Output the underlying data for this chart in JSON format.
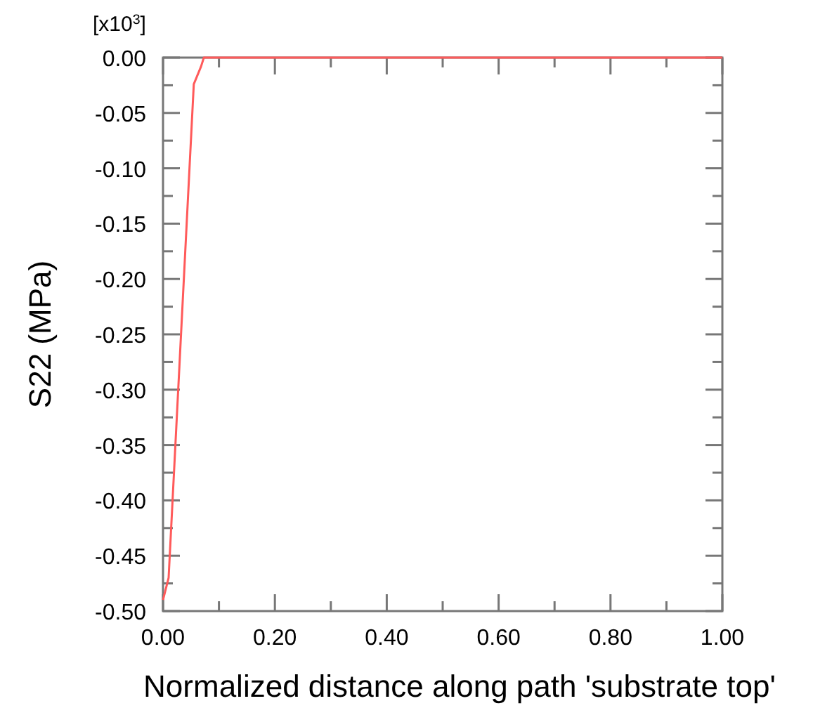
{
  "chart_data": {
    "type": "line",
    "xlabel": "Normalized distance along path 'substrate top'",
    "ylabel": "S22 (MPa)",
    "annotations": [
      "[x10$^{3}$]"
    ],
    "x": [
      0,
      0.01,
      0.055,
      0.068,
      0.073,
      1.0
    ],
    "series": [
      {
        "color": "#ff5a5a",
        "values": [
          -0.49,
          -0.47,
          -0.024,
          -0.008,
          0,
          0
        ]
      }
    ],
    "xlim": [
      0,
      1
    ],
    "ylim": [
      -0.5,
      0
    ],
    "xticks": [
      {
        "value": 0,
        "label": "0.00"
      },
      {
        "value": 0.1,
        "label": null
      },
      {
        "value": 0.2,
        "label": "0.20"
      },
      {
        "value": 0.3,
        "label": null
      },
      {
        "value": 0.4,
        "label": "0.40"
      },
      {
        "value": 0.5,
        "label": null
      },
      {
        "value": 0.6,
        "label": "0.60"
      },
      {
        "value": 0.7,
        "label": null
      },
      {
        "value": 0.8,
        "label": "0.80"
      },
      {
        "value": 0.9,
        "label": null
      },
      {
        "value": 1,
        "label": "1.00"
      }
    ],
    "yticks": [
      {
        "value": -0.5,
        "label": "-0.50"
      },
      {
        "value": -0.475,
        "label": null
      },
      {
        "value": -0.45,
        "label": "-0.45"
      },
      {
        "value": -0.425,
        "label": null
      },
      {
        "value": -0.4,
        "label": "-0.40"
      },
      {
        "value": -0.375,
        "label": null
      },
      {
        "value": -0.35,
        "label": "-0.35"
      },
      {
        "value": -0.325,
        "label": null
      },
      {
        "value": -0.3,
        "label": "-0.30"
      },
      {
        "value": -0.275,
        "label": null
      },
      {
        "value": -0.25,
        "label": "-0.25"
      },
      {
        "value": -0.225,
        "label": null
      },
      {
        "value": -0.2,
        "label": "-0.20"
      },
      {
        "value": -0.175,
        "label": null
      },
      {
        "value": -0.15,
        "label": "-0.15"
      },
      {
        "value": -0.125,
        "label": null
      },
      {
        "value": -0.1,
        "label": "-0.10"
      },
      {
        "value": -0.075,
        "label": null
      },
      {
        "value": -0.05,
        "label": "-0.05"
      },
      {
        "value": -0.025,
        "label": null
      },
      {
        "value": 0,
        "label": "0.00"
      }
    ],
    "grid": false,
    "marker": "none",
    "line_style": "solid"
  }
}
